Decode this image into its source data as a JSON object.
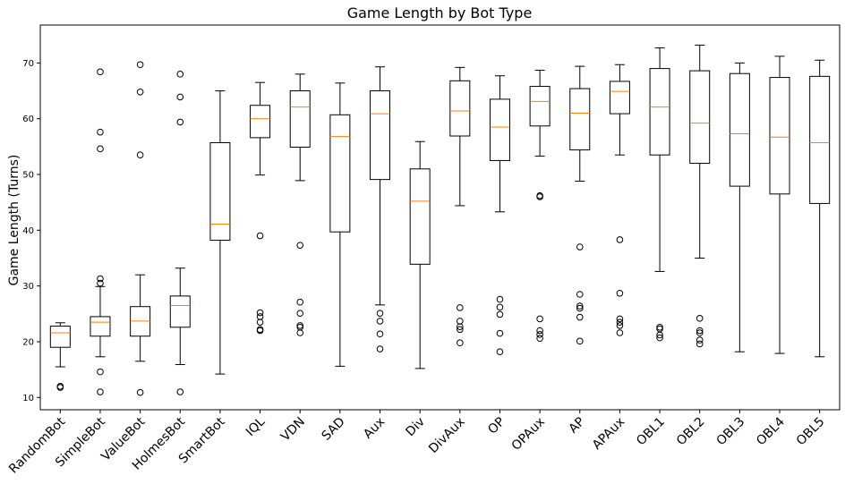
{
  "chart_data": {
    "type": "box",
    "title": "Game Length by Bot Type",
    "xlabel": "",
    "ylabel": "Game Length (Turns)",
    "ylim": [
      7.8,
      76.8
    ],
    "yticks": [
      10,
      20,
      30,
      40,
      50,
      60,
      70
    ],
    "grid": false,
    "categories": [
      "RandomBot",
      "SimpleBot",
      "ValueBot",
      "HolmesBot",
      "SmartBot",
      "IQL",
      "VDN",
      "SAD",
      "Aux",
      "Div",
      "DivAux",
      "OP",
      "OPAux",
      "AP",
      "APAux",
      "OBL1",
      "OBL2",
      "OBL3",
      "OBL4",
      "OBL5"
    ],
    "boxes": [
      {
        "whislo": 15.5,
        "q1": 19.0,
        "med": 21.6,
        "q3": 22.8,
        "whishi": 23.4,
        "fliers": [
          11.8,
          12.0
        ]
      },
      {
        "whislo": 17.3,
        "q1": 21.0,
        "med": 23.5,
        "q3": 24.5,
        "whishi": 29.9,
        "fliers": [
          31.3,
          30.5,
          14.6,
          11.0,
          54.6,
          57.6,
          68.4
        ]
      },
      {
        "whislo": 16.5,
        "q1": 21.0,
        "med": 23.7,
        "q3": 26.3,
        "whishi": 32.0,
        "fliers": [
          10.9,
          53.5,
          64.8,
          69.7
        ]
      },
      {
        "whislo": 15.9,
        "q1": 22.6,
        "med": 26.5,
        "q3": 28.2,
        "whishi": 33.2,
        "fliers": [
          11.0,
          59.4,
          63.9,
          68.0
        ]
      },
      {
        "whislo": 14.2,
        "q1": 38.2,
        "med": 41.1,
        "q3": 55.7,
        "whishi": 65.0,
        "fliers": []
      },
      {
        "whislo": 49.9,
        "q1": 56.6,
        "med": 60.0,
        "q3": 62.4,
        "whishi": 66.5,
        "fliers": [
          39.0,
          25.2,
          24.5,
          23.5,
          22.2,
          22.0
        ]
      },
      {
        "whislo": 48.9,
        "q1": 54.9,
        "med": 62.1,
        "q3": 65.0,
        "whishi": 68.0,
        "fliers": [
          37.3,
          27.1,
          25.1,
          22.9,
          22.6,
          21.6
        ]
      },
      {
        "whislo": 15.6,
        "q1": 39.7,
        "med": 56.8,
        "q3": 60.7,
        "whishi": 66.4,
        "fliers": []
      },
      {
        "whislo": 26.6,
        "q1": 49.1,
        "med": 60.9,
        "q3": 65.0,
        "whishi": 69.3,
        "fliers": [
          25.1,
          23.7,
          21.4,
          18.7
        ]
      },
      {
        "whislo": 15.2,
        "q1": 33.9,
        "med": 45.2,
        "q3": 51.0,
        "whishi": 55.9,
        "fliers": []
      },
      {
        "whislo": 44.4,
        "q1": 56.9,
        "med": 61.4,
        "q3": 66.8,
        "whishi": 69.2,
        "fliers": [
          26.1,
          23.7,
          22.7,
          22.2,
          19.8
        ]
      },
      {
        "whislo": 43.3,
        "q1": 52.5,
        "med": 58.5,
        "q3": 63.5,
        "whishi": 67.7,
        "fliers": [
          27.6,
          26.2,
          24.9,
          21.5,
          18.2
        ]
      },
      {
        "whislo": 53.3,
        "q1": 58.7,
        "med": 63.1,
        "q3": 65.8,
        "whishi": 68.7,
        "fliers": [
          46.2,
          46.0,
          24.1,
          22.0,
          21.3,
          20.6
        ]
      },
      {
        "whislo": 48.8,
        "q1": 54.4,
        "med": 61.0,
        "q3": 65.4,
        "whishi": 69.4,
        "fliers": [
          37.0,
          28.5,
          26.4,
          26.0,
          24.4,
          20.1
        ]
      },
      {
        "whislo": 53.5,
        "q1": 60.9,
        "med": 64.9,
        "q3": 66.7,
        "whishi": 69.7,
        "fliers": [
          38.3,
          28.7,
          24.1,
          23.5,
          22.9,
          21.6
        ]
      },
      {
        "whislo": 32.6,
        "q1": 53.5,
        "med": 62.1,
        "q3": 69.0,
        "whishi": 72.7,
        "fliers": [
          22.6,
          22.3,
          21.2,
          20.7
        ]
      },
      {
        "whislo": 35.0,
        "q1": 52.0,
        "med": 59.2,
        "q3": 68.6,
        "whishi": 73.2,
        "fliers": [
          24.2,
          22.0,
          21.6,
          20.3,
          19.6
        ]
      },
      {
        "whislo": 18.2,
        "q1": 47.9,
        "med": 57.3,
        "q3": 68.1,
        "whishi": 70.0,
        "fliers": []
      },
      {
        "whislo": 17.9,
        "q1": 46.5,
        "med": 56.7,
        "q3": 67.4,
        "whishi": 71.2,
        "fliers": []
      },
      {
        "whislo": 17.3,
        "q1": 44.8,
        "med": 55.7,
        "q3": 67.6,
        "whishi": 70.5,
        "fliers": []
      }
    ],
    "colors": {
      "box": "#000000",
      "median": "#ff7f0e",
      "axes": "#000000",
      "background": "#ffffff"
    }
  }
}
